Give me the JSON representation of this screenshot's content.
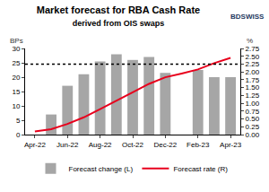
{
  "chart_data": {
    "type": "bar",
    "title": "Market forecast for RBA Cash Rate",
    "subtitle": "derived from OIS swaps",
    "logo": "BDSWISS",
    "ylabel": "BPs",
    "y2label": "%",
    "categories": [
      "Apr-22",
      null,
      "Jun-22",
      null,
      "Aug-22",
      null,
      "Oct-22",
      null,
      "Dec-22",
      null,
      "Feb-23",
      null,
      "Apr-23"
    ],
    "series": [
      {
        "name": "Forecast change (L)",
        "type": "bar",
        "color": "#a6a6a6",
        "values": [
          null,
          7,
          17,
          21,
          25.5,
          28,
          26,
          27,
          21.5,
          null,
          22.5,
          20,
          20
        ]
      },
      {
        "name": "Forecast rate (R)",
        "type": "line",
        "axis": "y2",
        "color": "#e8001c",
        "values": [
          0.1,
          0.17,
          0.34,
          0.55,
          0.81,
          1.09,
          1.35,
          1.62,
          1.83,
          1.95,
          2.08,
          2.28,
          2.45
        ]
      }
    ],
    "reference_lines": [
      {
        "value": 2.25,
        "axis": "y2",
        "line_style": "dotted",
        "color": "#000000"
      }
    ],
    "ylim": [
      0,
      30
    ],
    "yticks": [
      0,
      5,
      10,
      15,
      20,
      25,
      30
    ],
    "y2lim": [
      0,
      2.75
    ],
    "y2ticks": [
      {
        "value": 0,
        "label": "0.00"
      },
      {
        "value": 0.25,
        "label": "0.25"
      },
      {
        "value": 0.5,
        "label": "0.50"
      },
      {
        "value": 0.75,
        "label": "0.75"
      },
      {
        "value": 1,
        "label": "1.00"
      },
      {
        "value": 1.25,
        "label": "1.25"
      },
      {
        "value": 1.5,
        "label": "1.50"
      },
      {
        "value": 1.75,
        "label": "1.75"
      },
      {
        "value": 2,
        "label": "2.00"
      },
      {
        "value": 2.25,
        "label": "2.25"
      },
      {
        "value": 2.5,
        "label": "2.50"
      },
      {
        "value": 2.75,
        "label": "2.75"
      }
    ],
    "grid": false,
    "legend": "bottom"
  }
}
